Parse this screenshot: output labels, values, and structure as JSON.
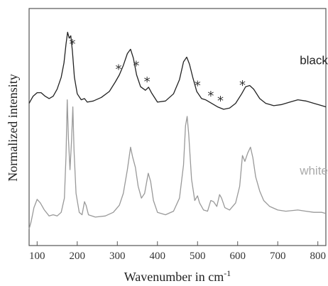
{
  "chart_data": {
    "type": "line",
    "title": "",
    "xlabel": "Wavenumber in cm",
    "xlabel_superscript": "-1",
    "ylabel": "Normalized intensity",
    "xlim": [
      80,
      820
    ],
    "ylim": [
      0,
      1
    ],
    "yticks_shown": false,
    "grid": false,
    "legend": "inline labels",
    "xticks": [
      100,
      200,
      300,
      400,
      500,
      600,
      700,
      800
    ],
    "series": [
      {
        "name": "black",
        "color": "#222222",
        "label_color": "#222222",
        "label_pos": [
          790,
          0.765
        ],
        "points": [
          [
            80,
            0.6
          ],
          [
            90,
            0.63
          ],
          [
            100,
            0.645
          ],
          [
            110,
            0.645
          ],
          [
            120,
            0.63
          ],
          [
            130,
            0.62
          ],
          [
            140,
            0.63
          ],
          [
            150,
            0.66
          ],
          [
            160,
            0.71
          ],
          [
            167,
            0.77
          ],
          [
            172,
            0.85
          ],
          [
            176,
            0.9
          ],
          [
            180,
            0.875
          ],
          [
            184,
            0.885
          ],
          [
            188,
            0.82
          ],
          [
            193,
            0.71
          ],
          [
            200,
            0.64
          ],
          [
            210,
            0.615
          ],
          [
            218,
            0.62
          ],
          [
            225,
            0.605
          ],
          [
            240,
            0.61
          ],
          [
            260,
            0.625
          ],
          [
            280,
            0.65
          ],
          [
            295,
            0.69
          ],
          [
            305,
            0.72
          ],
          [
            315,
            0.76
          ],
          [
            325,
            0.81
          ],
          [
            333,
            0.828
          ],
          [
            340,
            0.79
          ],
          [
            348,
            0.72
          ],
          [
            358,
            0.67
          ],
          [
            370,
            0.655
          ],
          [
            378,
            0.668
          ],
          [
            385,
            0.645
          ],
          [
            400,
            0.605
          ],
          [
            420,
            0.61
          ],
          [
            440,
            0.64
          ],
          [
            455,
            0.7
          ],
          [
            465,
            0.775
          ],
          [
            473,
            0.795
          ],
          [
            480,
            0.765
          ],
          [
            488,
            0.71
          ],
          [
            498,
            0.65
          ],
          [
            510,
            0.62
          ],
          [
            520,
            0.615
          ],
          [
            535,
            0.6
          ],
          [
            550,
            0.585
          ],
          [
            565,
            0.575
          ],
          [
            580,
            0.58
          ],
          [
            595,
            0.6
          ],
          [
            610,
            0.64
          ],
          [
            620,
            0.67
          ],
          [
            630,
            0.675
          ],
          [
            640,
            0.66
          ],
          [
            655,
            0.62
          ],
          [
            670,
            0.6
          ],
          [
            690,
            0.59
          ],
          [
            710,
            0.595
          ],
          [
            730,
            0.605
          ],
          [
            750,
            0.615
          ],
          [
            770,
            0.61
          ],
          [
            790,
            0.6
          ],
          [
            810,
            0.59
          ],
          [
            820,
            0.585
          ]
        ],
        "markers_x": [
          188,
          303,
          347,
          374,
          500,
          533,
          557,
          612
        ]
      },
      {
        "name": "white",
        "color": "#999999",
        "label_color": "#aaaaaa",
        "label_pos": [
          790,
          0.3
        ],
        "points": [
          [
            80,
            0.07
          ],
          [
            85,
            0.1
          ],
          [
            92,
            0.16
          ],
          [
            100,
            0.195
          ],
          [
            108,
            0.18
          ],
          [
            118,
            0.15
          ],
          [
            130,
            0.125
          ],
          [
            140,
            0.13
          ],
          [
            150,
            0.125
          ],
          [
            160,
            0.14
          ],
          [
            168,
            0.2
          ],
          [
            172,
            0.38
          ],
          [
            175,
            0.615
          ],
          [
            178,
            0.45
          ],
          [
            182,
            0.32
          ],
          [
            186,
            0.45
          ],
          [
            189,
            0.585
          ],
          [
            192,
            0.4
          ],
          [
            197,
            0.22
          ],
          [
            205,
            0.14
          ],
          [
            212,
            0.13
          ],
          [
            218,
            0.185
          ],
          [
            222,
            0.17
          ],
          [
            228,
            0.13
          ],
          [
            245,
            0.12
          ],
          [
            270,
            0.125
          ],
          [
            290,
            0.14
          ],
          [
            305,
            0.17
          ],
          [
            315,
            0.22
          ],
          [
            325,
            0.32
          ],
          [
            333,
            0.415
          ],
          [
            338,
            0.375
          ],
          [
            345,
            0.33
          ],
          [
            352,
            0.25
          ],
          [
            360,
            0.2
          ],
          [
            368,
            0.22
          ],
          [
            377,
            0.305
          ],
          [
            383,
            0.27
          ],
          [
            390,
            0.19
          ],
          [
            400,
            0.14
          ],
          [
            420,
            0.13
          ],
          [
            440,
            0.145
          ],
          [
            455,
            0.2
          ],
          [
            465,
            0.34
          ],
          [
            470,
            0.505
          ],
          [
            474,
            0.545
          ],
          [
            478,
            0.47
          ],
          [
            485,
            0.28
          ],
          [
            493,
            0.19
          ],
          [
            500,
            0.21
          ],
          [
            505,
            0.18
          ],
          [
            515,
            0.15
          ],
          [
            525,
            0.145
          ],
          [
            533,
            0.19
          ],
          [
            540,
            0.185
          ],
          [
            548,
            0.165
          ],
          [
            555,
            0.215
          ],
          [
            560,
            0.2
          ],
          [
            568,
            0.16
          ],
          [
            580,
            0.15
          ],
          [
            595,
            0.18
          ],
          [
            605,
            0.25
          ],
          [
            612,
            0.38
          ],
          [
            618,
            0.355
          ],
          [
            625,
            0.39
          ],
          [
            632,
            0.415
          ],
          [
            638,
            0.37
          ],
          [
            645,
            0.29
          ],
          [
            655,
            0.23
          ],
          [
            665,
            0.19
          ],
          [
            680,
            0.165
          ],
          [
            700,
            0.15
          ],
          [
            720,
            0.145
          ],
          [
            750,
            0.15
          ],
          [
            770,
            0.145
          ],
          [
            790,
            0.14
          ],
          [
            810,
            0.14
          ],
          [
            820,
            0.135
          ]
        ]
      }
    ]
  },
  "marker_symbol": "*"
}
